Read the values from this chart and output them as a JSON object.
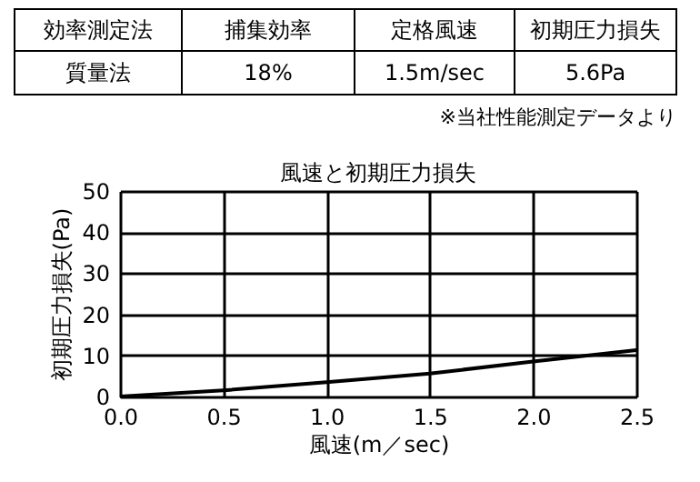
{
  "chart_data": {
    "type": "line",
    "title": "風速と初期圧力損失",
    "xlabel": "風速(m／sec)",
    "ylabel": "初期圧力損失(Pa)",
    "annotations": [
      "効率測定法",
      "捕集効率",
      "定格風速",
      "初期圧力損失",
      "質量法",
      "18%",
      "1.5m/sec",
      "5.6Pa",
      "※当社性能測定データより"
    ],
    "x": [
      0,
      0.5,
      1.0,
      1.5,
      2.0,
      2.5
    ],
    "series": [
      {
        "color": "#000000",
        "values": [
          0,
          1.5,
          3.5,
          5.6,
          8.5,
          11.3
        ]
      }
    ],
    "xlim": [
      0,
      2.5
    ],
    "xticks": [
      {
        "value": 0,
        "label": "0.0"
      },
      0.5,
      {
        "value": 1,
        "label": "1.0"
      },
      1.5,
      {
        "value": 2,
        "label": "2.0"
      },
      2.5
    ],
    "ylim": [
      0,
      50
    ],
    "yticks": [
      0,
      10,
      20,
      30,
      40,
      50
    ],
    "grid": true,
    "marker": "none",
    "line_style": "solid"
  }
}
